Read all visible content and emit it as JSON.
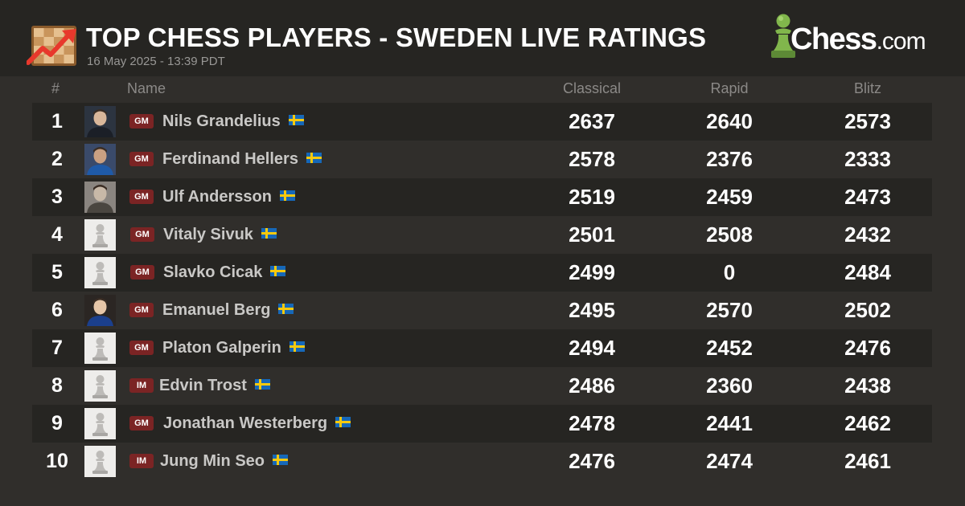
{
  "header": {
    "title": "TOP CHESS PLAYERS - SWEDEN LIVE RATINGS",
    "timestamp": "16 May 2025 - 13:39 PDT",
    "brand": "Chess",
    "brand_suffix": ".com"
  },
  "columns": {
    "rank": "#",
    "name": "Name",
    "classical": "Classical",
    "rapid": "Rapid",
    "blitz": "Blitz"
  },
  "colors": {
    "background": "#302e2b",
    "header": "#262522",
    "badge": "#7b2424",
    "accent_green": "#81b64c"
  },
  "players": [
    {
      "rank": "1",
      "title": "GM",
      "name": "Nils Grandelius",
      "classical": "2637",
      "rapid": "2640",
      "blitz": "2573",
      "avatar": "photo"
    },
    {
      "rank": "2",
      "title": "GM",
      "name": "Ferdinand Hellers",
      "classical": "2578",
      "rapid": "2376",
      "blitz": "2333",
      "avatar": "photo"
    },
    {
      "rank": "3",
      "title": "GM",
      "name": "Ulf Andersson",
      "classical": "2519",
      "rapid": "2459",
      "blitz": "2473",
      "avatar": "photo"
    },
    {
      "rank": "4",
      "title": "GM",
      "name": "Vitaly Sivuk",
      "classical": "2501",
      "rapid": "2508",
      "blitz": "2432",
      "avatar": "pawn-placeholder"
    },
    {
      "rank": "5",
      "title": "GM",
      "name": "Slavko Cicak",
      "classical": "2499",
      "rapid": "0",
      "blitz": "2484",
      "avatar": "pawn-placeholder"
    },
    {
      "rank": "6",
      "title": "GM",
      "name": "Emanuel Berg",
      "classical": "2495",
      "rapid": "2570",
      "blitz": "2502",
      "avatar": "photo"
    },
    {
      "rank": "7",
      "title": "GM",
      "name": "Platon Galperin",
      "classical": "2494",
      "rapid": "2452",
      "blitz": "2476",
      "avatar": "pawn-placeholder"
    },
    {
      "rank": "8",
      "title": "IM",
      "name": "Edvin Trost",
      "classical": "2486",
      "rapid": "2360",
      "blitz": "2438",
      "avatar": "pawn-placeholder"
    },
    {
      "rank": "9",
      "title": "GM",
      "name": "Jonathan Westerberg",
      "classical": "2478",
      "rapid": "2441",
      "blitz": "2462",
      "avatar": "pawn-placeholder"
    },
    {
      "rank": "10",
      "title": "IM",
      "name": "Jung Min Seo",
      "classical": "2476",
      "rapid": "2474",
      "blitz": "2461",
      "avatar": "pawn-placeholder"
    }
  ]
}
